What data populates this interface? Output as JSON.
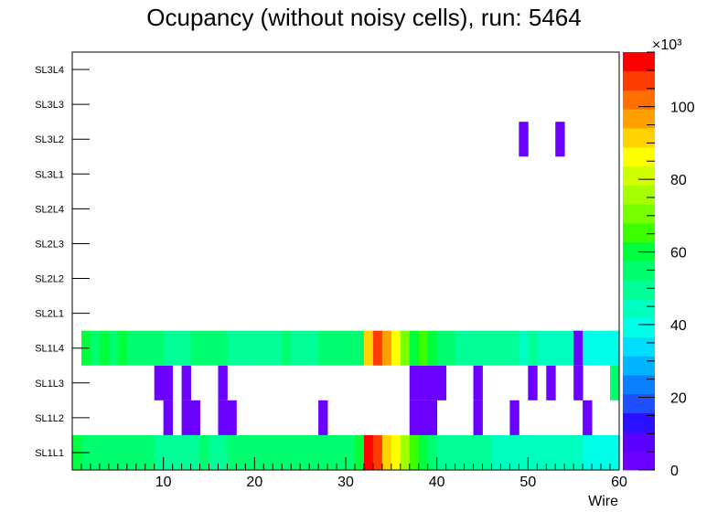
{
  "chart_data": {
    "type": "heatmap",
    "title": "Ocupancy (without noisy cells), run: 5464",
    "xlabel": "Wire",
    "ylabel": "",
    "xlim": [
      0,
      60
    ],
    "x_ticks": [
      "10",
      "20",
      "30",
      "40",
      "50",
      "60"
    ],
    "x_tick_values": [
      10,
      20,
      30,
      40,
      50,
      60
    ],
    "y_categories": [
      "SL1L1",
      "SL1L2",
      "SL1L3",
      "SL1L4",
      "SL2L1",
      "SL2L2",
      "SL2L3",
      "SL2L4",
      "SL3L1",
      "SL3L2",
      "SL3L3",
      "SL3L4"
    ],
    "z_range": [
      0,
      115000
    ],
    "z_multiplier_label": "×10³",
    "z_ticks": [
      "0",
      "20",
      "40",
      "60",
      "80",
      "100"
    ],
    "z_tick_values": [
      0,
      20000,
      40000,
      60000,
      80000,
      100000
    ],
    "palette": [
      "#6a00ff",
      "#5a00ff",
      "#2a10ff",
      "#1e50ff",
      "#0a80ff",
      "#00b4ff",
      "#00ddff",
      "#00ffe8",
      "#00ffbe",
      "#00ff96",
      "#00ff6e",
      "#00ff3c",
      "#3cff00",
      "#78ff00",
      "#a5ff00",
      "#d2ff00",
      "#ffff00",
      "#ffd200",
      "#ffa000",
      "#ff7000",
      "#ff3c00",
      "#ff0000"
    ],
    "series": [
      {
        "name": "SL1L1",
        "values": [
          62000,
          57000,
          57000,
          57000,
          57000,
          57000,
          57000,
          57000,
          57000,
          50000,
          50000,
          50000,
          50000,
          50000,
          57000,
          50000,
          50000,
          57000,
          57000,
          57000,
          57000,
          57000,
          57000,
          57000,
          57000,
          57000,
          57000,
          57000,
          57000,
          57000,
          57000,
          62000,
          110000,
          105000,
          90000,
          85000,
          75000,
          65000,
          62000,
          57000,
          50000,
          50000,
          50000,
          50000,
          50000,
          50000,
          44000,
          44000,
          44000,
          44000,
          44000,
          44000,
          44000,
          44000,
          44000,
          44000,
          40000,
          40000,
          40000,
          40000
        ]
      },
      {
        "name": "SL1L2",
        "values": [
          0,
          0,
          0,
          0,
          0,
          0,
          0,
          0,
          0,
          0,
          3000,
          0,
          3000,
          3000,
          0,
          0,
          3000,
          3000,
          0,
          0,
          0,
          0,
          0,
          0,
          0,
          0,
          0,
          3000,
          0,
          0,
          0,
          0,
          0,
          0,
          0,
          0,
          0,
          3000,
          3000,
          3000,
          0,
          0,
          0,
          0,
          3000,
          0,
          0,
          0,
          3000,
          0,
          0,
          0,
          0,
          0,
          0,
          0,
          3000,
          0,
          0,
          0
        ]
      },
      {
        "name": "SL1L3",
        "values": [
          0,
          0,
          0,
          0,
          0,
          0,
          0,
          0,
          0,
          3000,
          3000,
          0,
          3000,
          0,
          0,
          0,
          3000,
          0,
          0,
          0,
          0,
          0,
          0,
          0,
          0,
          0,
          0,
          0,
          0,
          0,
          0,
          0,
          0,
          0,
          0,
          0,
          0,
          3000,
          3000,
          3000,
          3000,
          0,
          0,
          0,
          3000,
          0,
          0,
          0,
          0,
          0,
          3000,
          0,
          3000,
          0,
          0,
          3000,
          0,
          0,
          0,
          55000
        ]
      },
      {
        "name": "SL1L4",
        "values": [
          0,
          60000,
          57000,
          60000,
          57000,
          60000,
          57000,
          57000,
          57000,
          57000,
          50000,
          50000,
          50000,
          57000,
          57000,
          57000,
          57000,
          50000,
          50000,
          50000,
          50000,
          50000,
          50000,
          57000,
          50000,
          50000,
          50000,
          57000,
          57000,
          57000,
          57000,
          57000,
          90000,
          108000,
          97000,
          85000,
          70000,
          62000,
          66000,
          62000,
          57000,
          57000,
          50000,
          50000,
          50000,
          50000,
          50000,
          50000,
          50000,
          45000,
          50000,
          42000,
          42000,
          42000,
          42000,
          3000,
          40000,
          40000,
          40000,
          40000
        ]
      },
      {
        "name": "SL2L1",
        "values": [
          0,
          0,
          0,
          0,
          0,
          0,
          0,
          0,
          0,
          0,
          0,
          0,
          0,
          0,
          0,
          0,
          0,
          0,
          0,
          0,
          0,
          0,
          0,
          0,
          0,
          0,
          0,
          0,
          0,
          0,
          0,
          0,
          0,
          0,
          0,
          0,
          0,
          0,
          0,
          0,
          0,
          0,
          0,
          0,
          0,
          0,
          0,
          0,
          0,
          0,
          0,
          0,
          0,
          0,
          0,
          0,
          0,
          0,
          0,
          0
        ]
      },
      {
        "name": "SL2L2",
        "values": [
          0,
          0,
          0,
          0,
          0,
          0,
          0,
          0,
          0,
          0,
          0,
          0,
          0,
          0,
          0,
          0,
          0,
          0,
          0,
          0,
          0,
          0,
          0,
          0,
          0,
          0,
          0,
          0,
          0,
          0,
          0,
          0,
          0,
          0,
          0,
          0,
          0,
          0,
          0,
          0,
          0,
          0,
          0,
          0,
          0,
          0,
          0,
          0,
          0,
          0,
          0,
          0,
          0,
          0,
          0,
          0,
          0,
          0,
          0,
          0
        ]
      },
      {
        "name": "SL2L3",
        "values": [
          0,
          0,
          0,
          0,
          0,
          0,
          0,
          0,
          0,
          0,
          0,
          0,
          0,
          0,
          0,
          0,
          0,
          0,
          0,
          0,
          0,
          0,
          0,
          0,
          0,
          0,
          0,
          0,
          0,
          0,
          0,
          0,
          0,
          0,
          0,
          0,
          0,
          0,
          0,
          0,
          0,
          0,
          0,
          0,
          0,
          0,
          0,
          0,
          0,
          0,
          0,
          0,
          0,
          0,
          0,
          0,
          0,
          0,
          0,
          0
        ]
      },
      {
        "name": "SL2L4",
        "values": [
          0,
          0,
          0,
          0,
          0,
          0,
          0,
          0,
          0,
          0,
          0,
          0,
          0,
          0,
          0,
          0,
          0,
          0,
          0,
          0,
          0,
          0,
          0,
          0,
          0,
          0,
          0,
          0,
          0,
          0,
          0,
          0,
          0,
          0,
          0,
          0,
          0,
          0,
          0,
          0,
          0,
          0,
          0,
          0,
          0,
          0,
          0,
          0,
          0,
          0,
          0,
          0,
          0,
          0,
          0,
          0,
          0,
          0,
          0,
          0
        ]
      },
      {
        "name": "SL3L1",
        "values": [
          0,
          0,
          0,
          0,
          0,
          0,
          0,
          0,
          0,
          0,
          0,
          0,
          0,
          0,
          0,
          0,
          0,
          0,
          0,
          0,
          0,
          0,
          0,
          0,
          0,
          0,
          0,
          0,
          0,
          0,
          0,
          0,
          0,
          0,
          0,
          0,
          0,
          0,
          0,
          0,
          0,
          0,
          0,
          0,
          0,
          0,
          0,
          0,
          0,
          0,
          0,
          0,
          0,
          0,
          0,
          0,
          0,
          0,
          0,
          0
        ]
      },
      {
        "name": "SL3L2",
        "values": [
          0,
          0,
          0,
          0,
          0,
          0,
          0,
          0,
          0,
          0,
          0,
          0,
          0,
          0,
          0,
          0,
          0,
          0,
          0,
          0,
          0,
          0,
          0,
          0,
          0,
          0,
          0,
          0,
          0,
          0,
          0,
          0,
          0,
          0,
          0,
          0,
          0,
          0,
          0,
          0,
          0,
          0,
          0,
          0,
          0,
          0,
          0,
          0,
          0,
          3000,
          0,
          0,
          0,
          3000,
          0,
          0,
          0,
          0,
          0,
          0
        ]
      },
      {
        "name": "SL3L3",
        "values": [
          0,
          0,
          0,
          0,
          0,
          0,
          0,
          0,
          0,
          0,
          0,
          0,
          0,
          0,
          0,
          0,
          0,
          0,
          0,
          0,
          0,
          0,
          0,
          0,
          0,
          0,
          0,
          0,
          0,
          0,
          0,
          0,
          0,
          0,
          0,
          0,
          0,
          0,
          0,
          0,
          0,
          0,
          0,
          0,
          0,
          0,
          0,
          0,
          0,
          0,
          0,
          0,
          0,
          0,
          0,
          0,
          0,
          0,
          0,
          0
        ]
      },
      {
        "name": "SL3L4",
        "values": [
          0,
          0,
          0,
          0,
          0,
          0,
          0,
          0,
          0,
          0,
          0,
          0,
          0,
          0,
          0,
          0,
          0,
          0,
          0,
          0,
          0,
          0,
          0,
          0,
          0,
          0,
          0,
          0,
          0,
          0,
          0,
          0,
          0,
          0,
          0,
          0,
          0,
          0,
          0,
          0,
          0,
          0,
          0,
          0,
          0,
          0,
          0,
          0,
          0,
          0,
          0,
          0,
          0,
          0,
          0,
          0,
          0,
          0,
          0,
          0
        ]
      }
    ]
  }
}
